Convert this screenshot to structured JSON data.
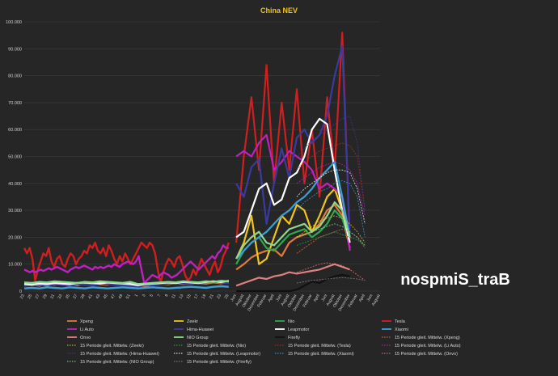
{
  "chart_data": {
    "type": "line",
    "title": "China  NEV",
    "watermark": "nospmiS_traB",
    "ylim": [
      0,
      100000
    ],
    "y_ticks": [
      "0",
      "10.000",
      "20.000",
      "30.000",
      "40.000",
      "50.000",
      "60.000",
      "70.000",
      "80.000",
      "90.000",
      "100.000"
    ],
    "x_ticks": [
      "23",
      "25",
      "27",
      "29",
      "31",
      "33",
      "35",
      "37",
      "39",
      "41",
      "43",
      "45",
      "47",
      "49",
      "51",
      "1",
      "3",
      "5",
      "7",
      "9",
      "11",
      "13",
      "15",
      "17",
      "19",
      "21",
      "23",
      "25",
      "Juni",
      "August",
      "Oktober",
      "Dezember",
      "Februar",
      "April",
      "Juni",
      "August",
      "Oktober",
      "Dezember",
      "Februar",
      "April",
      "Juni",
      "August",
      "Oktober",
      "Dezember",
      "Februar",
      "April",
      "Juni",
      "August"
    ],
    "x_weekly_to_monthly_switch_index": 28,
    "grid": true,
    "legend_position": "bottom",
    "series": [
      {
        "name": "Xpeng",
        "color": "#e07b39",
        "dash": "solid",
        "weekly": [
          2000,
          2500,
          2000,
          2800,
          2400,
          3000,
          2600,
          2200,
          2800,
          3200,
          2600,
          2400,
          3000,
          2800,
          2500,
          2200,
          1800,
          2400,
          2600,
          2800,
          3000,
          2600,
          2800,
          3000,
          2800,
          3200,
          2900,
          3400
        ],
        "monthly": [
          8000,
          10000,
          12500,
          14000,
          15000,
          15500,
          13000,
          18000,
          20000,
          21000,
          22000,
          25000,
          30000,
          32000,
          28000,
          16000
        ],
        "projection": []
      },
      {
        "name": "Zeekr",
        "color": "#f0c419",
        "dash": "solid",
        "weekly": [
          2400,
          2200,
          2600,
          2000,
          2800,
          2400,
          2200,
          3000,
          2600,
          2400,
          2800,
          2600,
          3000,
          2400,
          2200,
          1800,
          2600,
          2400,
          2800,
          2600,
          3000,
          2800,
          2600,
          3200,
          3000,
          3400,
          3200,
          3600
        ],
        "monthly": [
          12000,
          18000,
          28000,
          10000,
          12000,
          20000,
          28000,
          25000,
          32000,
          30000,
          22000,
          28000,
          35000,
          38000,
          30000,
          20000
        ],
        "projection": []
      },
      {
        "name": "Nio",
        "color": "#2fa84f",
        "dash": "solid",
        "weekly": [
          3000,
          2800,
          3200,
          3000,
          3400,
          3200,
          3000,
          2800,
          3200,
          3000,
          3400,
          3200,
          3000,
          2800,
          3200,
          2400,
          2600,
          2800,
          3000,
          3200,
          3000,
          3400,
          3200,
          3000,
          3400,
          3200,
          3600,
          3400
        ],
        "monthly": [
          10000,
          15000,
          18000,
          20000,
          16000,
          15000,
          18000,
          21000,
          22000,
          23000,
          20000,
          22000,
          25000,
          30000,
          27000,
          18000
        ],
        "projection": []
      },
      {
        "name": "Tesla",
        "color": "#d01f1f",
        "dash": "solid",
        "weekly": [
          16000,
          14000,
          16000,
          12000,
          4000,
          8000,
          11000,
          14000,
          13000,
          16000,
          11000,
          9000,
          12000,
          13000,
          10000,
          9000,
          12000,
          14000,
          13000,
          10000,
          12000,
          13000,
          15000,
          14000,
          17000,
          16000,
          18000,
          15000,
          14000,
          16000,
          13000,
          17000,
          15000,
          12000,
          10000,
          13000,
          11000,
          14000,
          12000,
          10000,
          12000,
          14000,
          16000,
          18000,
          17000,
          16000,
          18000,
          17000,
          14000,
          8000,
          3000,
          7000,
          10000,
          12000,
          11000,
          9000,
          12000,
          13000,
          10000,
          6000,
          4000,
          5000,
          8000,
          6000,
          9000,
          12000,
          10000,
          8000,
          6000,
          9000,
          11000,
          7000,
          9000,
          13000,
          15000,
          18000
        ],
        "monthly": [
          18000,
          50000,
          72000,
          45000,
          84000,
          40000,
          70000,
          45000,
          75000,
          40000,
          60000,
          35000,
          72000,
          45000,
          96000,
          18000
        ],
        "projection": []
      },
      {
        "name": "Li Auto",
        "color": "#c020c0",
        "dash": "solid",
        "weekly": [
          8000,
          7500,
          7000,
          7500,
          7000,
          7500,
          8000,
          7500,
          8000,
          8500,
          8000,
          8500,
          9000,
          8500,
          8000,
          7500,
          7000,
          8000,
          8500,
          9000,
          8500,
          9000,
          9500,
          9000,
          8500,
          8000,
          9000,
          8500,
          9000,
          8500,
          9000,
          9500,
          9000,
          10000,
          9500,
          9000,
          10000,
          10500,
          11000,
          10500,
          10000,
          11000,
          13000,
          8000,
          3000,
          4000,
          5000,
          6000,
          5500,
          5000,
          6000,
          7000,
          6500,
          6000,
          5000,
          5500,
          6000,
          7000,
          8000,
          9000,
          10000,
          11000,
          10000,
          9000,
          8000,
          9000,
          10000,
          11000,
          12000,
          13000,
          12000,
          14000,
          15000,
          17000,
          16000,
          16000
        ],
        "monthly": [
          50000,
          52000,
          50000,
          55000,
          58000,
          45000,
          48000,
          52000,
          50000,
          48000,
          45000,
          38000,
          40000,
          38000,
          35000,
          15000
        ],
        "projection": []
      },
      {
        "name": "Hima-Huawei",
        "color": "#3a3aa0",
        "dash": "solid",
        "weekly": [
          2000,
          2200,
          2400,
          2200,
          2600,
          2400,
          2200,
          2600,
          2400,
          2200,
          2800,
          2600,
          2400,
          2200,
          2000,
          1800,
          2200,
          2400,
          2600,
          2800,
          3000,
          2800,
          2600,
          3000,
          3200,
          3400,
          3200,
          3000
        ],
        "monthly": [
          40000,
          35000,
          46000,
          49000,
          25000,
          40000,
          53000,
          42000,
          57000,
          60000,
          55000,
          58000,
          65000,
          80000,
          91000,
          20000
        ],
        "projection": []
      },
      {
        "name": "Leapmotor",
        "color": "#ffffff",
        "dash": "solid",
        "weekly": [
          2600,
          2400,
          2800,
          2600,
          3000,
          2800,
          2600,
          3000,
          3200,
          3000,
          2800,
          3200,
          3000,
          2800,
          2600,
          2200,
          2600,
          2800,
          3000,
          3200,
          3000,
          3400,
          3200,
          3000,
          3400,
          3600,
          3400,
          3800
        ],
        "monthly": [
          20000,
          22000,
          30000,
          38000,
          40000,
          32000,
          34000,
          42000,
          44000,
          50000,
          60000,
          64000,
          62000,
          45000,
          30000,
          18000
        ],
        "projection": []
      },
      {
        "name": "Xiaomi",
        "color": "#3aa0d8",
        "dash": "solid",
        "weekly": [
          1000,
          1200,
          1000,
          1400,
          1200,
          1000,
          1400,
          1200,
          1000,
          1400,
          1200,
          1000,
          1200,
          1400,
          1200,
          1000,
          1200,
          1400,
          1200,
          1000,
          1200,
          1400,
          1600,
          1400,
          1200,
          1600,
          1800,
          1600
        ],
        "monthly": [
          12000,
          15000,
          18000,
          20000,
          22000,
          25000,
          28000,
          30000,
          33000,
          35000,
          38000,
          42000,
          45000,
          48000,
          35000,
          20000
        ],
        "projection": []
      },
      {
        "name": "Onvo",
        "color": "#e08080",
        "dash": "solid",
        "weekly": [],
        "monthly": [
          2000,
          3000,
          4000,
          5000,
          4500,
          5500,
          6000,
          7000,
          6500,
          7000,
          7500,
          8000,
          9000,
          10000,
          9000,
          8000
        ],
        "projection": []
      },
      {
        "name": "NIO Group",
        "color": "#90d890",
        "dash": "solid",
        "weekly": [
          3200,
          3000,
          3400,
          3200,
          3600,
          3400,
          3200,
          3000,
          3400,
          3200,
          3600,
          3400,
          3200,
          3000,
          3400,
          2600,
          2800,
          3000,
          3200,
          3400,
          3200,
          3600,
          3400,
          3200,
          3600,
          3400,
          3800,
          3600
        ],
        "monthly": [
          12000,
          17000,
          20000,
          22000,
          18000,
          17000,
          20000,
          23000,
          24000,
          25000,
          22000,
          24000,
          28000,
          33000,
          30000,
          20000
        ],
        "projection": []
      },
      {
        "name": "Firefly",
        "color": "#111111",
        "dash": "solid",
        "weekly": [],
        "monthly": [
          0,
          0,
          0,
          0,
          0,
          0,
          0,
          0,
          500,
          2000,
          3500,
          3000,
          4500,
          5500,
          6000,
          5500
        ],
        "projection": []
      },
      {
        "name": "15 Periode gleit. Mittelw. (Xpeng)",
        "color": "#e07b39",
        "dash": "dotted",
        "weekly": [],
        "monthly": [],
        "projection": [
          14000,
          16000,
          18000,
          20000,
          21000,
          22000,
          23000,
          22000,
          20000,
          16000
        ]
      },
      {
        "name": "15 Periode gleit. Mittelw. (Zeekr)",
        "color": "#f0c419",
        "dash": "dotted",
        "weekly": [],
        "monthly": [],
        "projection": [
          20000,
          22000,
          24000,
          26000,
          27000,
          28000,
          27000,
          25000,
          22000,
          18000
        ]
      },
      {
        "name": "15 Periode gleit. Mittelw. (Nio)",
        "color": "#2fa84f",
        "dash": "dotted",
        "weekly": [],
        "monthly": [],
        "projection": [
          17000,
          18000,
          19000,
          20000,
          21000,
          22000,
          21000,
          20000,
          19000,
          17000
        ]
      },
      {
        "name": "15 Periode gleit. Mittelw. (Tesla)",
        "color": "#d01f1f",
        "dash": "dotted",
        "weekly": [],
        "monthly": [],
        "projection": [
          45000,
          48000,
          50000,
          52000,
          53000,
          54000,
          55000,
          54000,
          50000,
          30000
        ]
      },
      {
        "name": "15 Periode gleit. Mittelw. (Li Auto)",
        "color": "#c020c0",
        "dash": "dotted",
        "weekly": [],
        "monthly": [],
        "projection": [
          40000,
          42000,
          44000,
          46000,
          47000,
          48000,
          47000,
          45000,
          40000,
          28000
        ]
      },
      {
        "name": "15 Periode gleit. Mittelw. (Hima-Huawei)",
        "color": "#3a3aa0",
        "dash": "dotted",
        "weekly": [],
        "monthly": [],
        "projection": [
          50000,
          53000,
          56000,
          58000,
          60000,
          62000,
          64000,
          65000,
          55000,
          30000
        ]
      },
      {
        "name": "15 Periode gleit. Mittelw. (Leapmotor)",
        "color": "#ffffff",
        "dash": "dotted",
        "weekly": [],
        "monthly": [],
        "projection": [
          35000,
          38000,
          40000,
          42000,
          44000,
          45000,
          45000,
          44000,
          38000,
          25000
        ]
      },
      {
        "name": "15 Periode gleit. Mittelw. (Xiaomi)",
        "color": "#3aa0d8",
        "dash": "dotted",
        "weekly": [],
        "monthly": [],
        "projection": [
          30000,
          33000,
          35000,
          37000,
          38000,
          40000,
          41000,
          40000,
          35000,
          20000
        ]
      },
      {
        "name": "15 Periode gleit. Mittelw. (Onvo)",
        "color": "#e08080",
        "dash": "dotted",
        "weekly": [],
        "monthly": [],
        "projection": [
          7000,
          8000,
          9000,
          10000,
          10500,
          10000,
          9500,
          8000,
          6000,
          4000
        ]
      },
      {
        "name": "15 Periode gleit. Mittelw. (NIO Group)",
        "color": "#90d890",
        "dash": "dotted",
        "weekly": [],
        "monthly": [],
        "projection": [
          20000,
          21000,
          22000,
          23000,
          24000,
          25000,
          24000,
          22000,
          20000,
          17000
        ]
      },
      {
        "name": "15 Periode gleit. Mittelw. (Firefly)",
        "color": "#888888",
        "dash": "dotted",
        "weekly": [],
        "monthly": [],
        "projection": [
          3000,
          3500,
          4000,
          4200,
          4500,
          4800,
          5000,
          4800,
          4500,
          4000
        ]
      }
    ]
  }
}
